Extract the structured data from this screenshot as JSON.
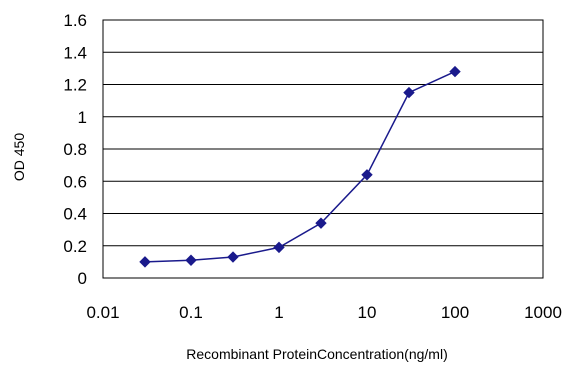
{
  "chart_data": {
    "type": "line",
    "title": "",
    "xlabel": "Recombinant ProteinConcentration(ng/ml)",
    "ylabel": "OD 450",
    "x_scale": "log",
    "xlim": [
      0.01,
      1000
    ],
    "ylim": [
      0,
      1.6
    ],
    "x_ticks": [
      0.01,
      0.1,
      1,
      10,
      100,
      1000
    ],
    "x_tick_labels": [
      "0.01",
      "0.1",
      "1",
      "10",
      "100",
      "1000"
    ],
    "y_ticks": [
      0,
      0.2,
      0.4,
      0.6,
      0.8,
      1,
      1.2,
      1.4,
      1.6
    ],
    "y_tick_labels": [
      "0",
      "0.2",
      "0.4",
      "0.6",
      "0.8",
      "1",
      "1.2",
      "1.4",
      "1.6"
    ],
    "grid": "horizontal",
    "legend": "none",
    "series": [
      {
        "color": "#1a1a8c",
        "marker": "diamond",
        "x": [
          0.03,
          0.1,
          0.3,
          1,
          3,
          10,
          30,
          100
        ],
        "y": [
          0.1,
          0.11,
          0.13,
          0.19,
          0.34,
          0.64,
          1.15,
          1.28
        ]
      }
    ]
  }
}
